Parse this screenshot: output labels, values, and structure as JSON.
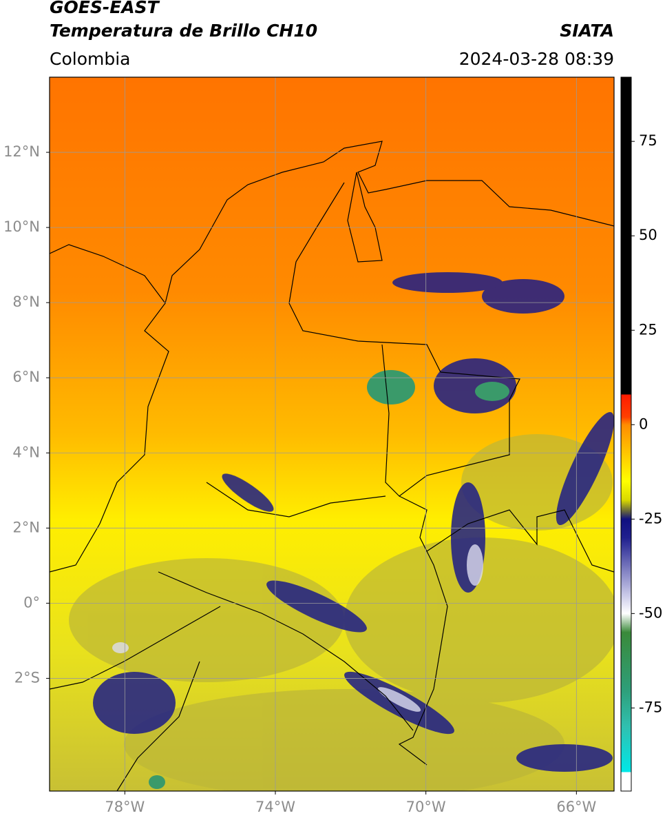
{
  "header": {
    "title": "GOES-EAST",
    "subtitle": "Temperatura de Brillo CH10",
    "source": "SIATA",
    "region": "Colombia",
    "timestamp": "2024-03-28 08:39"
  },
  "map": {
    "xlim": [
      -80,
      -65
    ],
    "ylim": [
      -5,
      14
    ],
    "grid": true,
    "grid_color": "#9a9a9a",
    "xticks": [
      {
        "value": -78,
        "label": "78°W"
      },
      {
        "value": -74,
        "label": "74°W"
      },
      {
        "value": -70,
        "label": "70°W"
      },
      {
        "value": -66,
        "label": "66°W"
      }
    ],
    "yticks": [
      {
        "value": 12,
        "label": "12°N"
      },
      {
        "value": 10,
        "label": "10°N"
      },
      {
        "value": 8,
        "label": "8°N"
      },
      {
        "value": 6,
        "label": "6°N"
      },
      {
        "value": 4,
        "label": "4°N"
      },
      {
        "value": 2,
        "label": "2°N"
      },
      {
        "value": 0,
        "label": "0°"
      },
      {
        "value": -2,
        "label": "2°S"
      }
    ]
  },
  "colorbar": {
    "lim": [
      -97,
      92
    ],
    "ticks": [
      75,
      50,
      25,
      0,
      -25,
      -50,
      -75
    ],
    "colormap": [
      {
        "value": 92,
        "color": "#000000"
      },
      {
        "value": 8,
        "color": "#000000"
      },
      {
        "value": 8,
        "color": "#ff1a00"
      },
      {
        "value": 2,
        "color": "#ff4000"
      },
      {
        "value": 0,
        "color": "#ff8c00"
      },
      {
        "value": -15,
        "color": "#ffff00"
      },
      {
        "value": -20,
        "color": "#d8d800"
      },
      {
        "value": -23,
        "color": "#606040"
      },
      {
        "value": -25,
        "color": "#101080"
      },
      {
        "value": -30,
        "color": "#20208f"
      },
      {
        "value": -45,
        "color": "#c8c8e8"
      },
      {
        "value": -50,
        "color": "#ffffff"
      },
      {
        "value": -55,
        "color": "#3a8a3a"
      },
      {
        "value": -70,
        "color": "#2e9e78"
      },
      {
        "value": -80,
        "color": "#30c0b0"
      },
      {
        "value": -92,
        "color": "#00e8e8"
      },
      {
        "value": -92,
        "color": "#ffffff"
      },
      {
        "value": -97,
        "color": "#ffffff"
      }
    ]
  }
}
